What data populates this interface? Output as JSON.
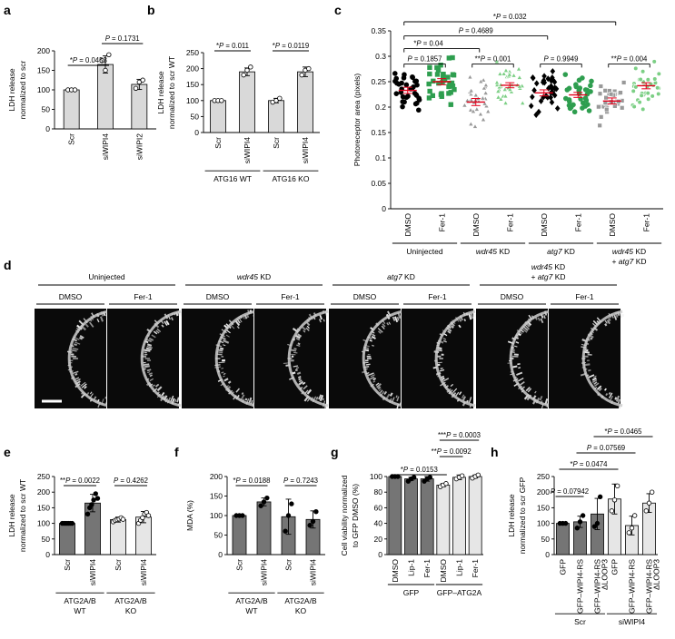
{
  "chart_data": [
    {
      "panel": "a",
      "type": "bar",
      "ylabel": "LDH release normalized to scr",
      "ylim": [
        0,
        200
      ],
      "yticks": [
        0,
        50,
        100,
        150,
        200
      ],
      "categories": [
        "Scr",
        "siWIPI4",
        "siWIPI2"
      ],
      "values": [
        100,
        165,
        114
      ],
      "errors": [
        0,
        22,
        13
      ],
      "colors": [
        "#d9d9d9",
        "#d9d9d9",
        "#d9d9d9"
      ],
      "points": [
        [
          100,
          100,
          100
        ],
        [
          175,
          150,
          190
        ],
        [
          104,
          120,
          125
        ]
      ],
      "comparisons": [
        {
          "from": 0,
          "to": 1,
          "label": "*P = 0.0453"
        },
        {
          "from": 1,
          "to": 2,
          "label": "P = 0.1731"
        }
      ]
    },
    {
      "panel": "b",
      "type": "bar",
      "ylabel": "LDH release normalized to scr WT",
      "ylim": [
        0,
        250
      ],
      "yticks": [
        0,
        50,
        100,
        150,
        200,
        250
      ],
      "categories": [
        "Scr",
        "siWIPI4",
        "Scr",
        "siWIPI4"
      ],
      "values": [
        100,
        190,
        100,
        190
      ],
      "errors": [
        0,
        12,
        7,
        15
      ],
      "colors": [
        "#d9d9d9",
        "#d9d9d9",
        "#d9d9d9",
        "#d9d9d9"
      ],
      "points": [
        [
          100,
          100,
          100
        ],
        [
          180,
          195,
          205
        ],
        [
          95,
          100,
          107
        ],
        [
          180,
          195,
          200
        ]
      ],
      "groups": [
        {
          "label": "ATG16 WT",
          "from": 0,
          "to": 1
        },
        {
          "label": "ATG16 KO",
          "from": 2,
          "to": 3
        }
      ],
      "comparisons": [
        {
          "from": 0,
          "to": 1,
          "label": "*P = 0.011"
        },
        {
          "from": 2,
          "to": 3,
          "label": "*P = 0.0119"
        }
      ]
    },
    {
      "panel": "c",
      "type": "scatter",
      "ylabel": "Photoreceptor area (pixels)",
      "ylim": [
        0,
        0.35
      ],
      "yticks": [
        0,
        0.05,
        0.1,
        0.15,
        0.2,
        0.25,
        0.3,
        0.35
      ],
      "categories": [
        "DMSO",
        "Fer-1",
        "DMSO",
        "Fer-1",
        "DMSO",
        "Fer-1",
        "DMSO",
        "Fer-1"
      ],
      "means": [
        0.233,
        0.25,
        0.21,
        0.243,
        0.228,
        0.224,
        0.212,
        0.242
      ],
      "sem": [
        0.006,
        0.006,
        0.007,
        0.005,
        0.006,
        0.005,
        0.006,
        0.006
      ],
      "colors": [
        "#000000",
        "#2e9e4f",
        "#999999",
        "#7ccf85",
        "#000000",
        "#2e9e4f",
        "#999999",
        "#7ccf85"
      ],
      "markers": [
        "circle",
        "square",
        "triangle",
        "triangle",
        "diamond",
        "circle",
        "square",
        "circle"
      ],
      "groups": [
        {
          "label": "Uninjected",
          "from": 0,
          "to": 1
        },
        {
          "label": "wdr45 KD",
          "from": 2,
          "to": 3
        },
        {
          "label": "atg7 KD",
          "from": 4,
          "to": 5
        },
        {
          "label": "wdr45 KD + atg7 KD",
          "from": 6,
          "to": 7
        }
      ],
      "comparisons": [
        {
          "from": 0,
          "to": 1,
          "label": "P = 0.1857"
        },
        {
          "from": 2,
          "to": 3,
          "label": "**P = 0.001"
        },
        {
          "from": 4,
          "to": 5,
          "label": "P = 0.9949"
        },
        {
          "from": 6,
          "to": 7,
          "label": "**P = 0.004"
        },
        {
          "from": 0,
          "to": 2,
          "label": "*P = 0.04"
        },
        {
          "from": 0,
          "to": 4,
          "label": "P = 0.4689"
        },
        {
          "from": 0,
          "to": 6,
          "label": "*P = 0.032"
        }
      ]
    },
    {
      "panel": "e",
      "type": "bar",
      "ylabel": "LDH release normalized to scr WT",
      "ylim": [
        0,
        250
      ],
      "yticks": [
        0,
        50,
        100,
        150,
        200,
        250
      ],
      "categories": [
        "Scr",
        "siWIPI4",
        "Scr",
        "siWIPI4"
      ],
      "values": [
        100,
        165,
        112,
        120
      ],
      "errors": [
        0,
        28,
        8,
        18
      ],
      "colors": [
        "#757575",
        "#757575",
        "#e6e6e6",
        "#e6e6e6"
      ],
      "points": [
        [
          100,
          100,
          100,
          100,
          100,
          100
        ],
        [
          130,
          150,
          160,
          175,
          195,
          180
        ],
        [
          105,
          110,
          112,
          114,
          118,
          113
        ],
        [
          100,
          110,
          118,
          130,
          135,
          125
        ]
      ],
      "groups": [
        {
          "label": "ATG2A/B WT",
          "from": 0,
          "to": 1
        },
        {
          "label": "ATG2A/B KO",
          "from": 2,
          "to": 3
        }
      ],
      "comparisons": [
        {
          "from": 0,
          "to": 1,
          "label": "**P = 0.0022"
        },
        {
          "from": 2,
          "to": 3,
          "label": "P = 0.4262"
        }
      ]
    },
    {
      "panel": "f",
      "type": "bar",
      "ylabel": "MDA (%)",
      "ylim": [
        0,
        200
      ],
      "yticks": [
        0,
        50,
        100,
        150,
        200
      ],
      "categories": [
        "Scr",
        "siWIPI4",
        "Scr",
        "siWIPI4"
      ],
      "values": [
        100,
        135,
        97,
        90
      ],
      "errors": [
        0,
        10,
        45,
        22
      ],
      "colors": [
        "#757575",
        "#757575",
        "#757575",
        "#757575"
      ],
      "points": [
        [
          100,
          100,
          100
        ],
        [
          125,
          135,
          145
        ],
        [
          60,
          100,
          130
        ],
        [
          75,
          85,
          110
        ]
      ],
      "groups": [
        {
          "label": "ATG2A/B WT",
          "from": 0,
          "to": 1
        },
        {
          "label": "ATG2A/B KO",
          "from": 2,
          "to": 3
        }
      ],
      "comparisons": [
        {
          "from": 0,
          "to": 1,
          "label": "*P = 0.0188"
        },
        {
          "from": 2,
          "to": 3,
          "label": "P = 0.7243"
        }
      ]
    },
    {
      "panel": "g",
      "type": "bar",
      "ylabel": "Cell viability normalized to GFP DMSO (%)",
      "ylim": [
        0,
        100
      ],
      "yticks": [
        0,
        20,
        40,
        60,
        80,
        100
      ],
      "categories": [
        "DMSO",
        "Lip-1",
        "Fer-1",
        "DMSO",
        "Lip-1",
        "Fer-1"
      ],
      "values": [
        100,
        97,
        97,
        89,
        99,
        100
      ],
      "errors": [
        0,
        2,
        3,
        2,
        3,
        2
      ],
      "colors": [
        "#757575",
        "#757575",
        "#757575",
        "#e6e6e6",
        "#e6e6e6",
        "#e6e6e6"
      ],
      "points": [
        [
          100,
          100,
          100
        ],
        [
          94,
          97,
          99
        ],
        [
          94,
          97,
          99
        ],
        [
          87,
          89,
          91
        ],
        [
          97,
          99,
          101
        ],
        [
          98,
          100,
          102
        ]
      ],
      "groups": [
        {
          "label": "GFP",
          "from": 0,
          "to": 2
        },
        {
          "label": "GFP–ATG2A",
          "from": 3,
          "to": 5
        }
      ],
      "comparisons": [
        {
          "from": 0,
          "to": 3,
          "label": "*P = 0.0153"
        },
        {
          "from": 3,
          "to": 4,
          "label": "**P = 0.0092"
        },
        {
          "from": 3,
          "to": 5,
          "label": "***P = 0.0003"
        }
      ]
    },
    {
      "panel": "h",
      "type": "bar",
      "ylabel": "LDH release normalized to scr GFP",
      "ylim": [
        0,
        250
      ],
      "yticks": [
        0,
        50,
        100,
        150,
        200,
        250
      ],
      "categories": [
        "GFP",
        "GFP–WIPI4-RS",
        "GFP–WIPI4-RS ΔLOOP3",
        "GFP",
        "GFP–WIPI4-RS",
        "GFP–WIPI4-RS ΔLOOP3"
      ],
      "values": [
        100,
        105,
        130,
        178,
        93,
        165
      ],
      "errors": [
        0,
        18,
        50,
        48,
        30,
        30
      ],
      "colors": [
        "#757575",
        "#757575",
        "#757575",
        "#e6e6e6",
        "#e6e6e6",
        "#e6e6e6"
      ],
      "points": [
        [
          100,
          100,
          100
        ],
        [
          85,
          105,
          125
        ],
        [
          90,
          100,
          185
        ],
        [
          140,
          175,
          220
        ],
        [
          70,
          85,
          125
        ],
        [
          140,
          165,
          200
        ]
      ],
      "groups": [
        {
          "label": "Scr",
          "from": 0,
          "to": 2
        },
        {
          "label": "siWIPI4",
          "from": 3,
          "to": 5
        }
      ],
      "comparisons": [
        {
          "from": 0,
          "to": 1,
          "label": "P = 0.07942"
        },
        {
          "from": 0,
          "to": 3,
          "label": "*P = 0.0474"
        },
        {
          "from": 1,
          "to": 4,
          "label": "P = 0.07569"
        },
        {
          "from": 2,
          "to": 5,
          "label": "*P = 0.0465"
        }
      ]
    }
  ],
  "panel_d": {
    "panel": "d",
    "groups": [
      {
        "label": "Uninjected",
        "conditions": [
          "DMSO",
          "Fer-1"
        ]
      },
      {
        "label": "wdr45 KD",
        "conditions": [
          "DMSO",
          "Fer-1"
        ]
      },
      {
        "label": "atg7 KD",
        "conditions": [
          "DMSO",
          "Fer-1"
        ]
      },
      {
        "label": "wdr45 KD + atg7 KD",
        "conditions": [
          "DMSO",
          "Fer-1"
        ]
      }
    ]
  },
  "panel_letters": [
    "a",
    "b",
    "c",
    "d",
    "e",
    "f",
    "g",
    "h"
  ]
}
